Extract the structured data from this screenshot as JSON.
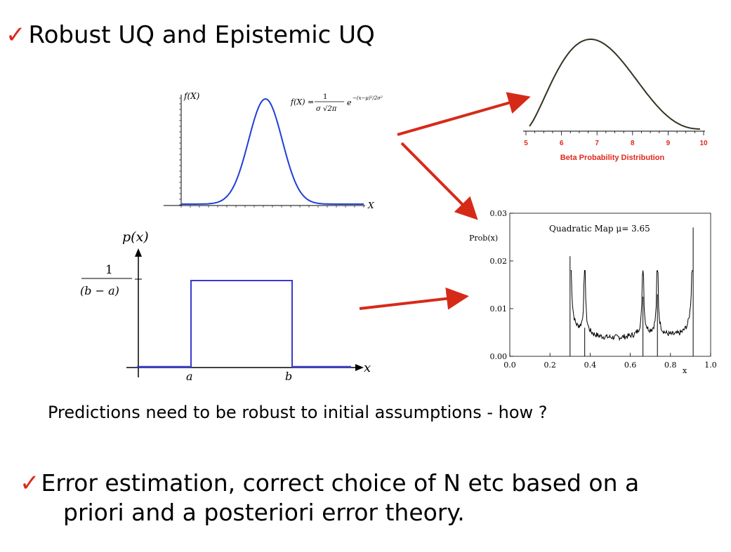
{
  "slide": {
    "check_glyph": "✓",
    "title": "Robust UQ and Epistemic UQ",
    "question": "Predictions need to be robust to initial assumptions - how ?",
    "bullet2_line1": "Error estimation, correct choice of N etc based on a",
    "bullet2_line2": "priori and a posteriori error theory."
  },
  "normal_plot": {
    "ylabel": "f(X)",
    "xlabel": "X",
    "formula_lhs": "f(X) =",
    "formula_num": "1",
    "formula_den": "σ √2π",
    "formula_exp_base": "e",
    "formula_exp": "−(x−μ)²/2σ²",
    "curve_color": "#1f3fd6"
  },
  "uniform_plot": {
    "ylabel": "p(x)",
    "height_num": "1",
    "height_den": "(b − a)",
    "xlabel": "x",
    "a_label": "a",
    "b_label": "b",
    "line_color": "#3a3ad0"
  },
  "beta_plot": {
    "title": "Beta Probability Distribution",
    "tick_labels": [
      "5",
      "6",
      "7",
      "8",
      "9",
      "10"
    ],
    "label_color": "#e0281c",
    "curve_color": "#333322"
  },
  "chart_data": {
    "type": "line",
    "title": "Quadratic Map  μ= 3.65",
    "xlabel": "x",
    "ylabel": "Prob(x)",
    "x_ticks": [
      "0.0",
      "0.2",
      "0.4",
      "0.6",
      "0.8",
      "1.0"
    ],
    "y_ticks": [
      "0.00",
      "0.01",
      "0.02",
      "0.03"
    ],
    "xlim": [
      0,
      1
    ],
    "ylim": [
      0,
      0.03
    ],
    "support": [
      0.3,
      0.913
    ],
    "peaks": [
      {
        "x": 0.3,
        "y": 0.021
      },
      {
        "x": 0.373,
        "y": 0.006
      },
      {
        "x": 0.663,
        "y": 0.0125
      },
      {
        "x": 0.735,
        "y": 0.013
      },
      {
        "x": 0.913,
        "y": 0.027
      }
    ]
  },
  "arrows": {
    "color": "#d62a18"
  }
}
